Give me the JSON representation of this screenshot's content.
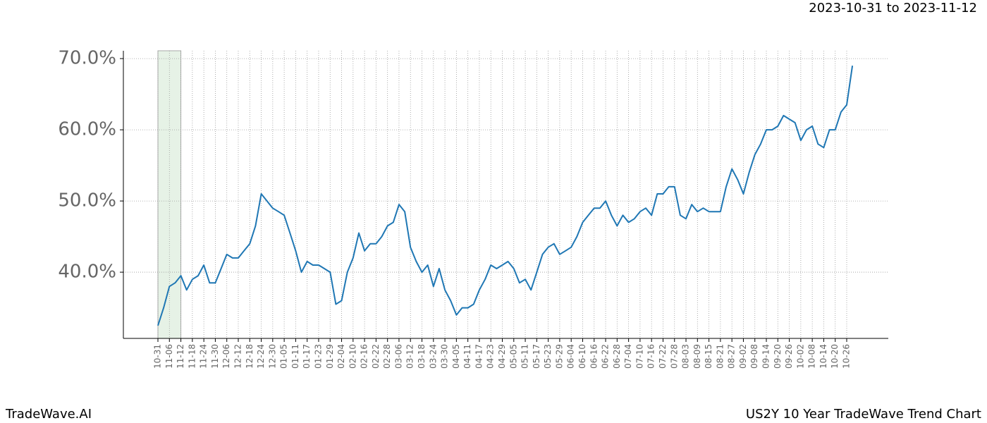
{
  "header": {
    "range": "2023-10-31 to 2023-11-12"
  },
  "footer": {
    "left": "TradeWave.AI",
    "right": "US2Y 10 Year TradeWave Trend Chart"
  },
  "chart_data": {
    "type": "line",
    "categories": [
      "10-31",
      null,
      "11-06",
      null,
      "11-12",
      null,
      "11-18",
      null,
      "11-24",
      null,
      "11-30",
      null,
      "12-06",
      null,
      "12-12",
      null,
      "12-18",
      null,
      "12-24",
      null,
      "12-30",
      null,
      "01-05",
      null,
      "01-11",
      null,
      "01-17",
      null,
      "01-23",
      null,
      "01-29",
      null,
      "02-04",
      null,
      "02-10",
      null,
      "02-16",
      null,
      "02-22",
      null,
      "02-28",
      null,
      "03-06",
      null,
      "03-12",
      null,
      "03-18",
      null,
      "03-24",
      null,
      "03-30",
      null,
      "04-05",
      null,
      "04-11",
      null,
      "04-17",
      null,
      "04-23",
      null,
      "04-29",
      null,
      "05-05",
      null,
      "05-11",
      null,
      "05-17",
      null,
      "05-23",
      null,
      "05-29",
      null,
      "06-04",
      null,
      "06-10",
      null,
      "06-16",
      null,
      "06-22",
      null,
      "06-28",
      null,
      "07-04",
      null,
      "07-10",
      null,
      "07-16",
      null,
      "07-22",
      null,
      "07-28",
      null,
      "08-03",
      null,
      "08-09",
      null,
      "08-15",
      null,
      "08-21",
      null,
      "08-27",
      null,
      "09-02",
      null,
      "09-08",
      null,
      "09-14",
      null,
      "09-20",
      null,
      "09-26",
      null,
      "10-02",
      null,
      "10-08",
      null,
      "10-14",
      null,
      "10-20",
      null,
      "10-26",
      null
    ],
    "series": [
      {
        "color": "#1f77b4",
        "values": [
          32.5,
          35,
          38,
          38.5,
          39.5,
          37.5,
          39,
          39.5,
          41,
          38.5,
          38.5,
          40.5,
          42.5,
          42,
          42,
          43,
          44,
          46.5,
          51,
          50,
          49,
          48.5,
          48,
          45.5,
          43,
          40,
          41.5,
          41,
          41,
          40.5,
          40,
          35.5,
          36,
          40,
          42,
          45.5,
          43,
          44,
          44,
          45,
          46.5,
          47,
          49.5,
          48.5,
          43.5,
          41.5,
          40,
          41,
          38,
          40.5,
          37.5,
          36,
          34,
          35,
          35,
          35.5,
          37.5,
          39,
          41,
          40.5,
          41,
          41.5,
          40.5,
          38.5,
          39,
          37.5,
          40,
          42.5,
          43.5,
          44,
          42.5,
          43,
          43.5,
          45,
          47,
          48,
          49,
          49,
          50,
          48,
          46.5,
          48,
          47,
          47.5,
          48.5,
          49,
          48,
          51,
          51,
          52,
          52,
          48,
          47.5,
          49.5,
          48.5,
          49,
          48.5,
          48.5,
          48.5,
          52,
          54.5,
          53,
          51,
          54,
          56.5,
          58,
          60,
          60,
          60.5,
          62,
          61.5,
          61,
          58.5,
          60,
          60.5,
          58,
          57.5,
          60,
          60,
          62.5,
          63.5,
          69
        ]
      }
    ],
    "ylim": [
      30.7,
      71.1
    ],
    "yticks": [
      {
        "value": 40,
        "label": "40.0%"
      },
      {
        "value": 50,
        "label": "50.0%"
      },
      {
        "value": 60,
        "label": "60.0%"
      },
      {
        "value": 70,
        "label": "70.0%"
      }
    ],
    "grid": true
  }
}
